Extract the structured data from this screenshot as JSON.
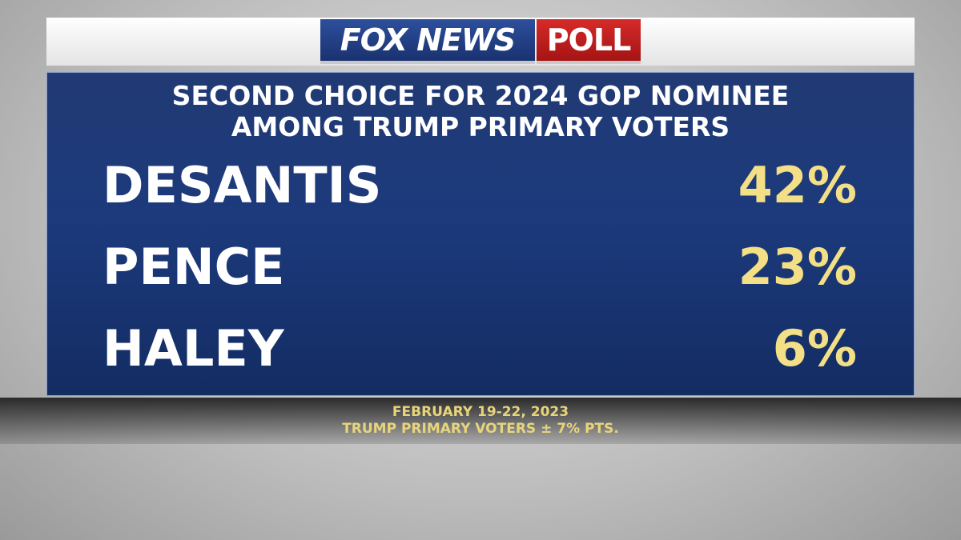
{
  "header": {
    "logo_left": "FOX NEWS",
    "logo_right": "POLL"
  },
  "title": [
    "SECOND CHOICE FOR 2024 GOP NOMINEE",
    "AMONG TRUMP PRIMARY VOTERS"
  ],
  "rows": [
    {
      "name": "DESANTIS",
      "value": "42%"
    },
    {
      "name": "PENCE",
      "value": "23%"
    },
    {
      "name": "HALEY",
      "value": "6%"
    }
  ],
  "footer": [
    "FEBRUARY 19-22, 2023",
    "TRUMP PRIMARY VOTERS ± 7% PTS."
  ]
}
